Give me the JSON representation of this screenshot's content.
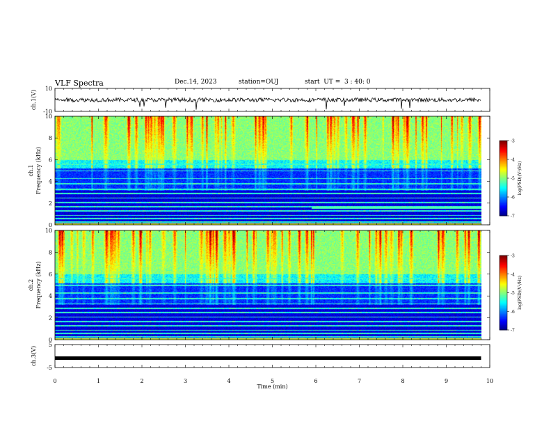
{
  "header": {
    "title": "VLF Spectra",
    "date": "Dec.14, 2023",
    "station": "station=OUJ",
    "start": "start  UT =  3 : 40: 0"
  },
  "chart_data": [
    {
      "type": "line",
      "panel": "waveform-ch1",
      "ylabel": "ch.1(V)",
      "ylim": [
        -10,
        10
      ],
      "yticks": [
        "10",
        "-10"
      ],
      "series": [
        {
          "values_note": "",
          "x_range": [
            0,
            9.8
          ],
          "approx_level": 0
        }
      ]
    },
    {
      "type": "heatmap",
      "panel": "spectrogram-ch1",
      "ylabel": "ch.1\nFrequency (kHz)",
      "ylim": [
        0,
        10
      ],
      "yticks": [
        "0",
        "2",
        "4",
        "6",
        "8",
        "10"
      ],
      "xlim": [
        0,
        10
      ],
      "data_end_min": 9.8,
      "colorbar": {
        "label": "log(PSD)(V²/Hz)",
        "range": [
          -7,
          -3
        ],
        "ticks": [
          "-3",
          "-4",
          "-5",
          "-6",
          "-7"
        ]
      }
    },
    {
      "type": "heatmap",
      "panel": "spectrogram-ch2",
      "ylabel": "ch.2\nFrequency (kHz)",
      "ylim": [
        0,
        10
      ],
      "yticks": [
        "0",
        "2",
        "4",
        "6",
        "8",
        "10"
      ],
      "xlim": [
        0,
        10
      ],
      "data_end_min": 9.8,
      "colorbar": {
        "label": "log(PSD)(V²/Hz)",
        "range": [
          -7,
          -3
        ],
        "ticks": [
          "-3",
          "-4",
          "-5",
          "-6",
          "-7"
        ]
      }
    },
    {
      "type": "line",
      "panel": "waveform-ch3",
      "ylabel": "ch.3(V)",
      "ylim": [
        -5,
        5
      ],
      "yticks": [
        "5",
        "-5"
      ],
      "series": [
        {
          "x_range": [
            0,
            9.8
          ],
          "approx_level": -0.9
        }
      ]
    }
  ],
  "xaxis": {
    "label": "Time (min)",
    "ticks": [
      "0",
      "1",
      "2",
      "3",
      "4",
      "5",
      "6",
      "7",
      "8",
      "9",
      "10"
    ]
  },
  "labels": {
    "ch1": "ch.1(V)",
    "spec1_top": "ch.1",
    "spec1_bottom": "Frequency (kHz)",
    "spec2_top": "ch.2",
    "spec2_bottom": "Frequency (kHz)",
    "ch3": "ch.3(V)",
    "cbar": "log(PSD)(V²/Hz)"
  },
  "colors": {
    "background": "#000080",
    "colormap": [
      "#00007f",
      "#0000ff",
      "#0080ff",
      "#00ffff",
      "#80ff80",
      "#ffff00",
      "#ff8000",
      "#ff0000",
      "#7f0000"
    ]
  }
}
